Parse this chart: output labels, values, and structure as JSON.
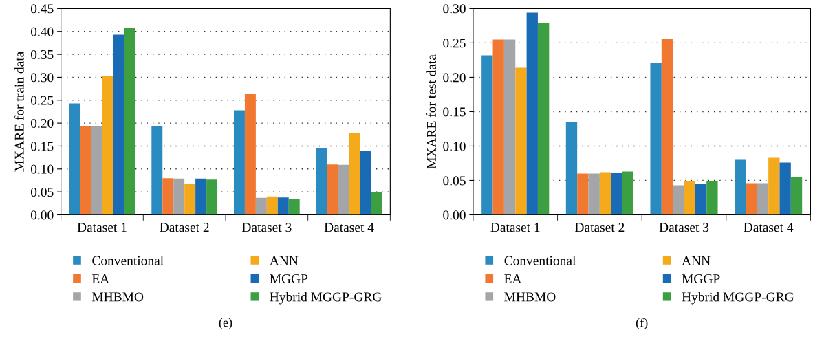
{
  "chart_data": [
    {
      "type": "bar",
      "ylabel": "MXARE for train data",
      "categories": [
        "Dataset 1",
        "Dataset 2",
        "Dataset 3",
        "Dataset 4"
      ],
      "series": [
        {
          "name": "Conventional",
          "color": "#2a8bc1",
          "values": [
            0.243,
            0.194,
            0.228,
            0.145
          ]
        },
        {
          "name": "EA",
          "color": "#f07830",
          "values": [
            0.194,
            0.08,
            0.263,
            0.11
          ]
        },
        {
          "name": "MHBMO",
          "color": "#a3a5a8",
          "values": [
            0.194,
            0.079,
            0.037,
            0.109
          ]
        },
        {
          "name": "ANN",
          "color": "#f5aa1c",
          "values": [
            0.303,
            0.068,
            0.04,
            0.178
          ]
        },
        {
          "name": "MGGP",
          "color": "#1a6bb5",
          "values": [
            0.393,
            0.079,
            0.038,
            0.14
          ]
        },
        {
          "name": "Hybrid MGGP-GRG",
          "color": "#3ca043",
          "values": [
            0.408,
            0.077,
            0.035,
            0.05
          ]
        }
      ],
      "ylim": [
        0,
        0.45
      ],
      "yticks": [
        {
          "value": 0,
          "label": "0.00"
        },
        0.05,
        {
          "value": 0.1,
          "label": "0.10"
        },
        0.15,
        {
          "value": 0.2,
          "label": "0.20"
        },
        0.25,
        {
          "value": 0.3,
          "label": "0.30"
        },
        0.35,
        {
          "value": 0.4,
          "label": "0.40"
        },
        0.45
      ],
      "grid": "y",
      "legend": "bottom",
      "annotations": [
        "(e)"
      ]
    },
    {
      "type": "bar",
      "ylabel": "MXARE for test data",
      "categories": [
        "Dataset 1",
        "Dataset 2",
        "Dataset 3",
        "Dataset 4"
      ],
      "series": [
        {
          "name": "Conventional",
          "color": "#2a8bc1",
          "values": [
            0.232,
            0.135,
            0.221,
            0.08
          ]
        },
        {
          "name": "EA",
          "color": "#f07830",
          "values": [
            0.255,
            0.06,
            0.256,
            0.046
          ]
        },
        {
          "name": "MHBMO",
          "color": "#a3a5a8",
          "values": [
            0.255,
            0.06,
            0.043,
            0.046
          ]
        },
        {
          "name": "ANN",
          "color": "#f5aa1c",
          "values": [
            0.214,
            0.062,
            0.049,
            0.083
          ]
        },
        {
          "name": "MGGP",
          "color": "#1a6bb5",
          "values": [
            0.294,
            0.061,
            0.045,
            0.076
          ]
        },
        {
          "name": "Hybrid MGGP-GRG",
          "color": "#3ca043",
          "values": [
            0.279,
            0.063,
            0.049,
            0.055
          ]
        }
      ],
      "ylim": [
        0,
        0.3
      ],
      "yticks": [
        {
          "value": 0,
          "label": "0.00"
        },
        0.05,
        {
          "value": 0.1,
          "label": "0.10"
        },
        0.15,
        {
          "value": 0.2,
          "label": "0.20"
        },
        0.25,
        {
          "value": 0.3,
          "label": "0.30"
        }
      ],
      "grid": "y",
      "legend": "bottom",
      "annotations": [
        "(f)"
      ]
    }
  ]
}
